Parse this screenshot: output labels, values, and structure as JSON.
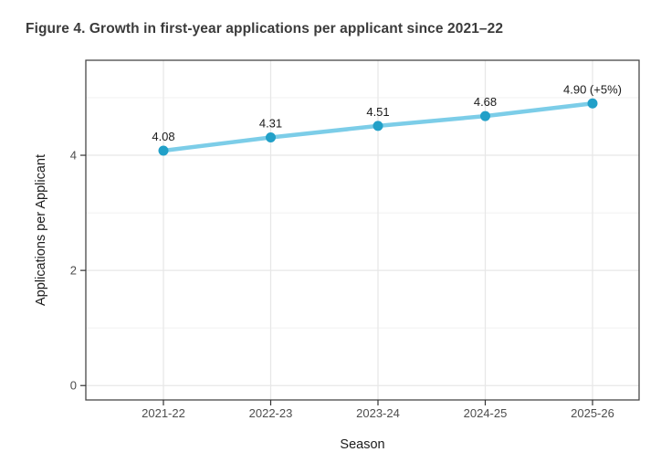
{
  "chart_data": {
    "type": "line",
    "title": "Figure 4. Growth in first-year applications per applicant since 2021–22",
    "xlabel": "Season",
    "ylabel": "Applications per Applicant",
    "categories": [
      "2021-22",
      "2022-23",
      "2023-24",
      "2024-25",
      "2025-26"
    ],
    "series": [
      {
        "name": "Applications per Applicant",
        "values": [
          4.08,
          4.31,
          4.51,
          4.68,
          4.9
        ],
        "point_labels": [
          "4.08",
          "4.31",
          "4.51",
          "4.68",
          "4.90 (+5%)"
        ]
      }
    ],
    "yticks": [
      0,
      2,
      4
    ],
    "minor_yticks": [
      1,
      3,
      5
    ],
    "ylim": [
      -0.25,
      5.65
    ],
    "grid": "on",
    "legend": "none",
    "colors": {
      "line": "#7ccde8",
      "point": "#21a0c8",
      "grid_major": "#e7e7e7",
      "grid_minor": "#f1f1f1",
      "panel_border": "#474747",
      "panel_bg": "#ffffff",
      "tick_mark": "#333333",
      "tick_text": "#4d4d4d",
      "point_label_text": "#1a1a1a",
      "axis_title_text": "#1c1c1c",
      "title_text": "#3b3b3b"
    }
  }
}
